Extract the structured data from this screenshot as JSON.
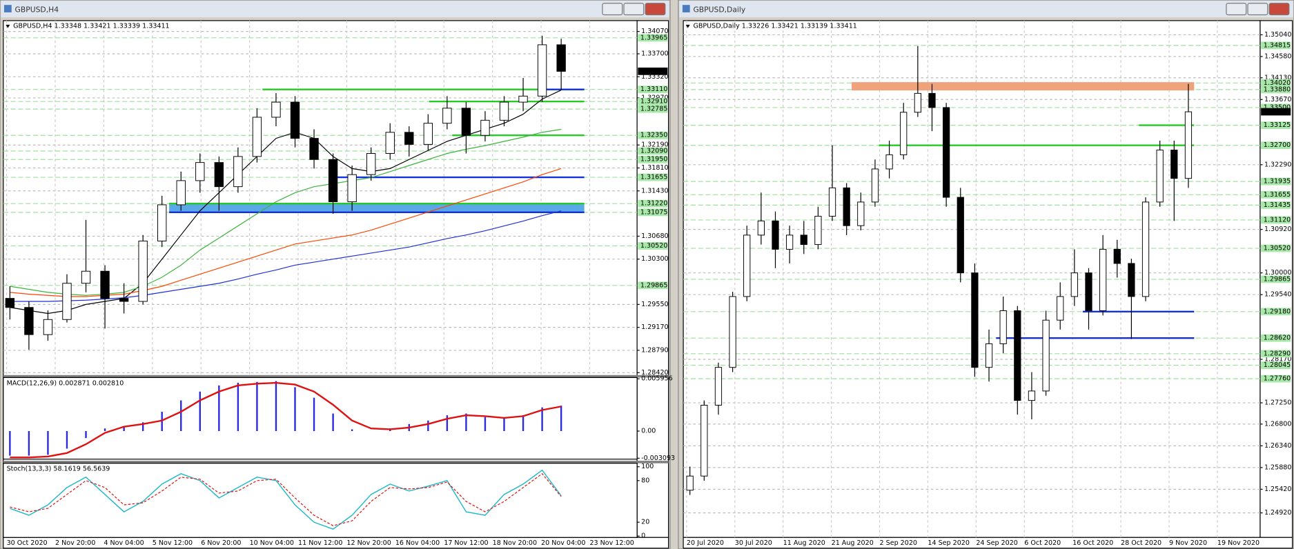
{
  "windows": [
    {
      "title": "GBPUSD,H4",
      "header": "GBPUSD,H4  1.33348 1.33421 1.33339 1.33411",
      "ylim": [
        1.2838,
        1.3425
      ],
      "ticks": [
        {
          "value": 1.3407,
          "label": "1.34070"
        },
        {
          "value": 1.337,
          "label": "1.33700"
        },
        {
          "value": 1.3332,
          "label": "1.33320"
        },
        {
          "value": 1.3297,
          "label": "1.32970"
        },
        {
          "value": 1.3219,
          "label": "1.32190"
        },
        {
          "value": 1.3181,
          "label": "1.31810"
        },
        {
          "value": 1.3143,
          "label": "1.31430"
        },
        {
          "value": 1.3068,
          "label": "1.30680"
        },
        {
          "value": 1.303,
          "label": "1.30300"
        },
        {
          "value": 1.2955,
          "label": "1.29550"
        },
        {
          "value": 1.2917,
          "label": "1.29170"
        },
        {
          "value": 1.2879,
          "label": "1.28790"
        },
        {
          "value": 1.2842,
          "label": "1.28420"
        }
      ],
      "levels": [
        {
          "value": 1.33965,
          "label": "1.33965"
        },
        {
          "value": 1.3311,
          "label": "1.33110"
        },
        {
          "value": 1.3291,
          "label": "1.32910"
        },
        {
          "value": 1.32785,
          "label": "1.32785"
        },
        {
          "value": 1.3235,
          "label": "1.32350"
        },
        {
          "value": 1.3209,
          "label": "1.32090"
        },
        {
          "value": 1.3195,
          "label": "1.31950"
        },
        {
          "value": 1.31655,
          "label": "1.31655"
        },
        {
          "value": 1.3122,
          "label": "1.31220"
        },
        {
          "value": 1.31075,
          "label": "1.31075"
        },
        {
          "value": 1.3052,
          "label": "1.30520"
        },
        {
          "value": 1.29865,
          "label": "1.29865"
        }
      ],
      "current": 1.33411,
      "candles": [
        [
          1.2965,
          1.2985,
          1.293,
          1.295
        ],
        [
          1.295,
          1.296,
          1.288,
          1.2905
        ],
        [
          1.2905,
          1.2945,
          1.2895,
          1.293
        ],
        [
          1.293,
          1.3005,
          1.2925,
          1.299
        ],
        [
          1.299,
          1.3095,
          1.2975,
          1.301
        ],
        [
          1.301,
          1.302,
          1.2915,
          1.2965
        ],
        [
          1.2965,
          1.299,
          1.294,
          1.296
        ],
        [
          1.296,
          1.307,
          1.2955,
          1.306
        ],
        [
          1.306,
          1.3135,
          1.305,
          1.312
        ],
        [
          1.312,
          1.3175,
          1.311,
          1.316
        ],
        [
          1.316,
          1.3205,
          1.314,
          1.319
        ],
        [
          1.319,
          1.32,
          1.311,
          1.315
        ],
        [
          1.315,
          1.3215,
          1.314,
          1.32
        ],
        [
          1.32,
          1.328,
          1.319,
          1.3265
        ],
        [
          1.3265,
          1.3305,
          1.325,
          1.329
        ],
        [
          1.329,
          1.33,
          1.3215,
          1.323
        ],
        [
          1.323,
          1.3245,
          1.318,
          1.3195
        ],
        [
          1.3195,
          1.3205,
          1.3105,
          1.3125
        ],
        [
          1.3125,
          1.3185,
          1.311,
          1.317
        ],
        [
          1.317,
          1.3215,
          1.316,
          1.3205
        ],
        [
          1.3205,
          1.3255,
          1.3195,
          1.324
        ],
        [
          1.324,
          1.325,
          1.32,
          1.322
        ],
        [
          1.322,
          1.327,
          1.321,
          1.3255
        ],
        [
          1.3255,
          1.33,
          1.3245,
          1.328
        ],
        [
          1.328,
          1.329,
          1.3205,
          1.3235
        ],
        [
          1.3235,
          1.3275,
          1.3225,
          1.326
        ],
        [
          1.326,
          1.33,
          1.325,
          1.329
        ],
        [
          1.329,
          1.333,
          1.3275,
          1.33
        ],
        [
          1.33,
          1.34,
          1.329,
          1.3385
        ],
        [
          1.3385,
          1.3395,
          1.331,
          1.3341
        ]
      ],
      "ma": [
        {
          "color": "#000000",
          "values": [
            1.295,
            1.2945,
            1.294,
            1.2945,
            1.2955,
            1.296,
            1.2965,
            1.299,
            1.303,
            1.307,
            1.311,
            1.314,
            1.317,
            1.32,
            1.323,
            1.324,
            1.323,
            1.32,
            1.318,
            1.3175,
            1.318,
            1.3195,
            1.321,
            1.3225,
            1.3235,
            1.3245,
            1.3255,
            1.327,
            1.3295,
            1.331
          ]
        },
        {
          "color": "#3cb43c",
          "values": [
            1.2985,
            1.298,
            1.2975,
            1.2972,
            1.297,
            1.2972,
            1.2975,
            1.2985,
            1.3,
            1.302,
            1.3045,
            1.3065,
            1.3085,
            1.3105,
            1.3125,
            1.314,
            1.315,
            1.3155,
            1.316,
            1.3165,
            1.3175,
            1.3185,
            1.3195,
            1.3205,
            1.3212,
            1.3218,
            1.3225,
            1.3232,
            1.324,
            1.3245
          ]
        },
        {
          "color": "#ff4500",
          "values": [
            1.2975,
            1.2972,
            1.297,
            1.2968,
            1.2968,
            1.297,
            1.2972,
            1.2978,
            1.2985,
            1.2995,
            1.3005,
            1.3015,
            1.3025,
            1.3035,
            1.3045,
            1.3055,
            1.306,
            1.3065,
            1.307,
            1.3078,
            1.3088,
            1.3098,
            1.3108,
            1.3118,
            1.3128,
            1.3138,
            1.3148,
            1.3158,
            1.317,
            1.318
          ]
        },
        {
          "color": "#1e2fd8",
          "values": [
            1.296,
            1.296,
            1.296,
            1.2961,
            1.2962,
            1.2964,
            1.2966,
            1.297,
            1.2975,
            1.298,
            1.2985,
            1.299,
            1.2997,
            1.3005,
            1.3012,
            1.302,
            1.3025,
            1.303,
            1.3035,
            1.304,
            1.3045,
            1.305,
            1.3057,
            1.3064,
            1.307,
            1.3077,
            1.3085,
            1.3093,
            1.3102,
            1.311
          ]
        }
      ],
      "macd": {
        "label": "MACD(12,26,9) 0.002871 0.002810",
        "ylim": [
          -0.0032,
          0.0061
        ],
        "ticks": [
          {
            "value": 0.005956,
            "label": "0.005956"
          },
          {
            "value": 0,
            "label": "0.00"
          },
          {
            "value": -0.003093,
            "label": "-0.003093"
          }
        ],
        "hist": [
          -0.0028,
          -0.0028,
          -0.0027,
          -0.002,
          -0.0008,
          0.0003,
          0.0005,
          0.001,
          0.0022,
          0.0035,
          0.0045,
          0.0052,
          0.0055,
          0.0056,
          0.0057,
          0.005,
          0.0038,
          0.002,
          0.0002,
          0.0,
          0.0003,
          0.0008,
          0.0012,
          0.0018,
          0.002,
          0.0016,
          0.0015,
          0.0018,
          0.0027,
          0.0029
        ],
        "signal": [
          -0.003,
          -0.003,
          -0.0029,
          -0.0025,
          -0.0015,
          -0.0002,
          0.0005,
          0.0008,
          0.0012,
          0.0022,
          0.0035,
          0.0045,
          0.0052,
          0.0054,
          0.0055,
          0.0053,
          0.0045,
          0.003,
          0.0012,
          0.0003,
          0.0002,
          0.0004,
          0.0008,
          0.0014,
          0.0018,
          0.0017,
          0.0015,
          0.0017,
          0.0024,
          0.0028
        ]
      },
      "stoch": {
        "label": "Stoch(13,3,3) 58.1619 56.5639",
        "ylim": [
          -2,
          105
        ],
        "ticks": [
          100,
          80,
          20,
          0
        ],
        "main": [
          40,
          30,
          45,
          70,
          85,
          60,
          35,
          50,
          75,
          90,
          80,
          55,
          70,
          85,
          80,
          45,
          20,
          10,
          30,
          60,
          75,
          65,
          72,
          80,
          35,
          30,
          60,
          75,
          95,
          58
        ],
        "signal": [
          42,
          35,
          40,
          60,
          80,
          70,
          45,
          48,
          65,
          85,
          82,
          62,
          65,
          80,
          82,
          55,
          30,
          15,
          22,
          50,
          70,
          68,
          70,
          78,
          50,
          35,
          50,
          70,
          90,
          57
        ]
      },
      "time_labels": [
        "30 Oct 2020",
        "2 Nov 20:00",
        "4 Nov 04:00",
        "5 Nov 12:00",
        "6 Nov 20:00",
        "10 Nov 04:00",
        "11 Nov 12:00",
        "12 Nov 20:00",
        "16 Nov 04:00",
        "17 Nov 12:00",
        "18 Nov 20:00",
        "20 Nov 04:00",
        "23 Nov 12:00"
      ]
    },
    {
      "title": "GBPUSD,Daily",
      "header": "GBPUSD,Daily  1.33226 1.33421 1.33139 1.33411",
      "ylim": [
        1.244,
        1.3534
      ],
      "ticks": [
        {
          "value": 1.3504,
          "label": "1.35040"
        },
        {
          "value": 1.3458,
          "label": "1.34580"
        },
        {
          "value": 1.3413,
          "label": "1.34130"
        },
        {
          "value": 1.3367,
          "label": "1.33670"
        },
        {
          "value": 1.3229,
          "label": "1.32290"
        },
        {
          "value": 1.3092,
          "label": "1.30920"
        },
        {
          "value": 1.3,
          "label": "1.30000"
        },
        {
          "value": 1.2954,
          "label": "1.29540"
        },
        {
          "value": 1.2817,
          "label": "1.28170"
        },
        {
          "value": 1.2725,
          "label": "1.27250"
        },
        {
          "value": 1.268,
          "label": "1.26800"
        },
        {
          "value": 1.2634,
          "label": "1.26340"
        },
        {
          "value": 1.2588,
          "label": "1.25880"
        },
        {
          "value": 1.2542,
          "label": "1.25420"
        },
        {
          "value": 1.2492,
          "label": "1.24920"
        }
      ],
      "levels": [
        {
          "value": 1.34815,
          "label": "1.34815"
        },
        {
          "value": 1.3402,
          "label": "1.34020"
        },
        {
          "value": 1.3388,
          "label": "1.33880"
        },
        {
          "value": 1.335,
          "label": "1.33500"
        },
        {
          "value": 1.33125,
          "label": "1.33125"
        },
        {
          "value": 1.327,
          "label": "1.32700"
        },
        {
          "value": 1.31935,
          "label": "1.31935"
        },
        {
          "value": 1.31655,
          "label": "1.31655"
        },
        {
          "value": 1.31435,
          "label": "1.31435"
        },
        {
          "value": 1.3112,
          "label": "1.31120"
        },
        {
          "value": 1.3052,
          "label": "1.30520"
        },
        {
          "value": 1.29865,
          "label": "1.29865"
        },
        {
          "value": 1.2918,
          "label": "1.29180"
        },
        {
          "value": 1.2862,
          "label": "1.28620"
        },
        {
          "value": 1.2829,
          "label": "1.28290"
        },
        {
          "value": 1.28045,
          "label": "1.28045"
        },
        {
          "value": 1.2776,
          "label": "1.27760"
        }
      ],
      "current": 1.33411,
      "candles": [
        [
          1.254,
          1.259,
          1.253,
          1.257
        ],
        [
          1.257,
          1.273,
          1.256,
          1.272
        ],
        [
          1.272,
          1.281,
          1.27,
          1.28
        ],
        [
          1.28,
          1.296,
          1.279,
          1.295
        ],
        [
          1.295,
          1.31,
          1.294,
          1.308
        ],
        [
          1.308,
          1.317,
          1.306,
          1.311
        ],
        [
          1.311,
          1.313,
          1.301,
          1.305
        ],
        [
          1.305,
          1.31,
          1.302,
          1.308
        ],
        [
          1.308,
          1.311,
          1.304,
          1.306
        ],
        [
          1.306,
          1.314,
          1.305,
          1.312
        ],
        [
          1.312,
          1.327,
          1.311,
          1.318
        ],
        [
          1.318,
          1.319,
          1.308,
          1.31
        ],
        [
          1.31,
          1.317,
          1.309,
          1.315
        ],
        [
          1.315,
          1.324,
          1.314,
          1.322
        ],
        [
          1.322,
          1.328,
          1.32,
          1.325
        ],
        [
          1.325,
          1.336,
          1.324,
          1.334
        ],
        [
          1.334,
          1.348,
          1.333,
          1.338
        ],
        [
          1.338,
          1.34,
          1.33,
          1.335
        ],
        [
          1.335,
          1.336,
          1.314,
          1.316
        ],
        [
          1.316,
          1.318,
          1.298,
          1.3
        ],
        [
          1.3,
          1.302,
          1.278,
          1.28
        ],
        [
          1.28,
          1.288,
          1.277,
          1.285
        ],
        [
          1.285,
          1.295,
          1.283,
          1.292
        ],
        [
          1.292,
          1.293,
          1.27,
          1.273
        ],
        [
          1.273,
          1.279,
          1.269,
          1.275
        ],
        [
          1.275,
          1.292,
          1.274,
          1.29
        ],
        [
          1.29,
          1.298,
          1.288,
          1.295
        ],
        [
          1.295,
          1.305,
          1.293,
          1.3
        ],
        [
          1.3,
          1.301,
          1.288,
          1.292
        ],
        [
          1.292,
          1.308,
          1.291,
          1.305
        ],
        [
          1.305,
          1.307,
          1.299,
          1.302
        ],
        [
          1.302,
          1.303,
          1.286,
          1.295
        ],
        [
          1.295,
          1.316,
          1.294,
          1.315
        ],
        [
          1.315,
          1.328,
          1.314,
          1.326
        ],
        [
          1.326,
          1.328,
          1.311,
          1.32
        ],
        [
          1.32,
          1.34,
          1.318,
          1.3341
        ]
      ],
      "time_labels": [
        "20 Jul 2020",
        "30 Jul 2020",
        "11 Aug 2020",
        "21 Aug 2020",
        "2 Sep 2020",
        "14 Sep 2020",
        "24 Sep 2020",
        "6 Oct 2020",
        "16 Oct 2020",
        "28 Oct 2020",
        "9 Nov 2020",
        "19 Nov 2020"
      ]
    }
  ]
}
